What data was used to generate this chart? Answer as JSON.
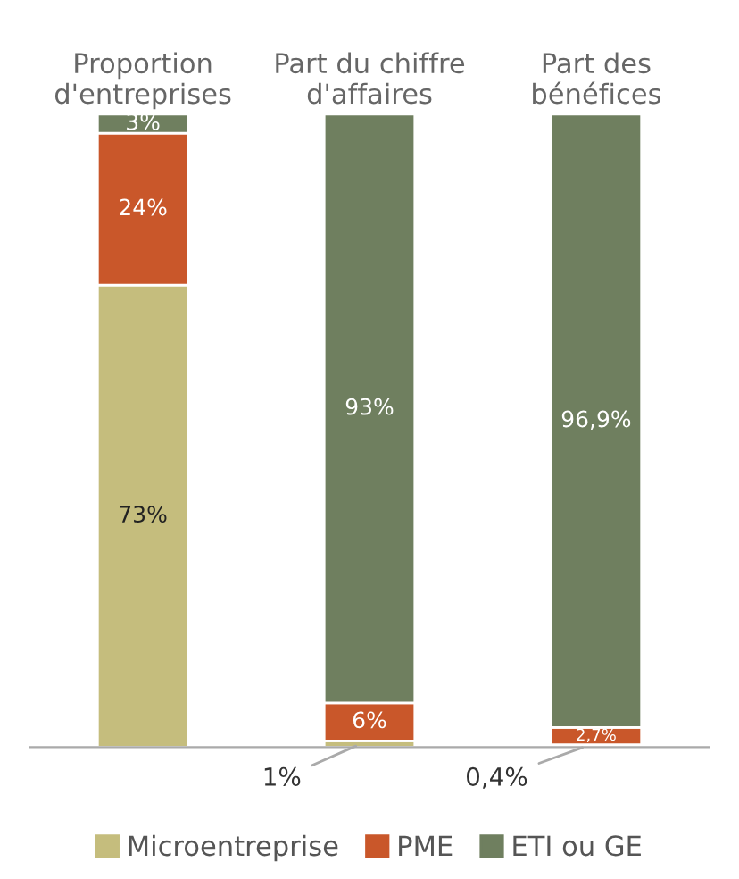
{
  "chart_data": {
    "type": "bar",
    "stacked": true,
    "legend": "bottom",
    "categories": [
      "Proportion\nd'entreprises",
      "Part du chiffre\nd'affaires",
      "Part des\nbénéfices"
    ],
    "series": [
      {
        "name": "Microentreprise",
        "color": "#c5bd7d",
        "values": [
          73,
          1,
          0.4
        ],
        "value_labels": [
          "73%",
          "1%",
          "0,4%"
        ]
      },
      {
        "name": "PME",
        "color": "#c9572a",
        "values": [
          24,
          6,
          2.7
        ],
        "value_labels": [
          "24%",
          "6%",
          "2,7%"
        ]
      },
      {
        "name": "ETI ou GE",
        "color": "#6f7f5f",
        "values": [
          3,
          93,
          96.9
        ],
        "value_labels": [
          "3%",
          "93%",
          "96,9%"
        ]
      }
    ]
  }
}
